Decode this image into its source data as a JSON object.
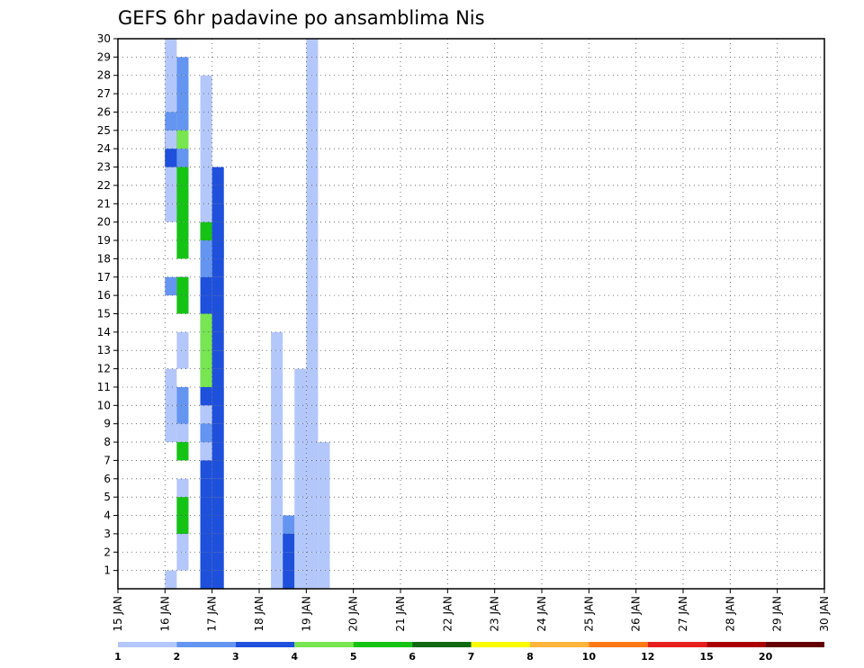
{
  "chart_data": {
    "type": "heatmap",
    "title": "GEFS 6hr padavine po ansamblima Nis",
    "xlabel": "",
    "ylabel": "",
    "x_tick_labels": [
      "15 JAN",
      "16 JAN",
      "17 JAN",
      "18 JAN",
      "19 JAN",
      "20 JAN",
      "21 JAN",
      "22 JAN",
      "23 JAN",
      "24 JAN",
      "25 JAN",
      "26 JAN",
      "27 JAN",
      "28 JAN",
      "29 JAN",
      "30 JAN"
    ],
    "y_tick_labels": [
      "1",
      "2",
      "3",
      "4",
      "5",
      "6",
      "7",
      "8",
      "9",
      "10",
      "11",
      "12",
      "13",
      "14",
      "15",
      "16",
      "17",
      "18",
      "19",
      "20",
      "21",
      "22",
      "23",
      "24",
      "25",
      "26",
      "27",
      "28",
      "29",
      "30"
    ],
    "xlim": [
      0,
      60
    ],
    "ylim": [
      0,
      30
    ],
    "grid": true,
    "x_unit": "6-hour steps from 15 JAN 00Z",
    "legend": {
      "position": "bottom",
      "labels": [
        "1",
        "2",
        "3",
        "4",
        "5",
        "6",
        "7",
        "8",
        "10",
        "12",
        "15",
        "20"
      ],
      "colors": [
        "#b4c7fa",
        "#6495f0",
        "#1e50dc",
        "#78e650",
        "#14c314",
        "#0f690f",
        "#fafa00",
        "#ffb43c",
        "#ff7814",
        "#e61e1e",
        "#aa0000",
        "#640000"
      ]
    },
    "cells": [
      [
        4,
        1,
        0
      ],
      [
        4,
        1,
        8
      ],
      [
        4,
        1,
        9
      ],
      [
        4,
        1,
        10
      ],
      [
        4,
        1,
        11
      ],
      [
        4,
        1,
        20
      ],
      [
        4,
        1,
        21
      ],
      [
        4,
        1,
        22
      ],
      [
        4,
        1,
        26
      ],
      [
        4,
        1,
        27
      ],
      [
        4,
        1,
        28
      ],
      [
        4,
        1,
        29
      ],
      [
        5,
        1,
        1
      ],
      [
        5,
        1,
        2
      ],
      [
        5,
        1,
        3
      ],
      [
        5,
        1,
        4
      ],
      [
        5,
        1,
        5
      ],
      [
        5,
        1,
        7
      ],
      [
        5,
        1,
        8
      ],
      [
        5,
        1,
        9
      ],
      [
        5,
        1,
        12
      ],
      [
        5,
        1,
        13
      ],
      [
        5,
        2,
        9
      ],
      [
        5,
        2,
        10
      ],
      [
        5,
        2,
        16
      ],
      [
        5,
        2,
        23
      ],
      [
        5,
        2,
        24
      ],
      [
        5,
        2,
        25
      ],
      [
        5,
        3,
        3
      ],
      [
        5,
        3,
        16
      ],
      [
        5,
        4,
        21
      ],
      [
        5,
        4,
        24
      ],
      [
        5,
        5,
        3
      ],
      [
        5,
        5,
        4
      ],
      [
        5,
        5,
        7
      ],
      [
        5,
        5,
        15
      ],
      [
        5,
        5,
        16
      ],
      [
        5,
        5,
        18
      ],
      [
        5,
        5,
        19
      ],
      [
        5,
        5,
        20
      ],
      [
        5,
        5,
        21
      ],
      [
        5,
        5,
        22
      ],
      [
        4,
        2,
        25
      ],
      [
        4,
        2,
        24
      ],
      [
        4,
        2,
        23
      ],
      [
        4,
        2,
        16
      ],
      [
        4,
        3,
        24
      ],
      [
        4,
        3,
        23
      ],
      [
        4,
        1,
        24
      ],
      [
        5,
        2,
        26
      ],
      [
        5,
        2,
        27
      ],
      [
        5,
        2,
        28
      ],
      [
        7,
        2,
        19
      ],
      [
        7,
        2,
        18
      ],
      [
        7,
        2,
        17
      ],
      [
        7,
        2,
        15
      ],
      [
        7,
        2,
        14
      ],
      [
        7,
        2,
        13
      ],
      [
        7,
        2,
        12
      ],
      [
        7,
        2,
        11
      ],
      [
        7,
        2,
        10
      ],
      [
        7,
        2,
        4
      ],
      [
        7,
        2,
        3
      ],
      [
        7,
        2,
        2
      ],
      [
        7,
        2,
        1
      ],
      [
        7,
        2,
        0
      ],
      [
        7,
        3,
        0
      ],
      [
        7,
        3,
        1
      ],
      [
        7,
        3,
        2
      ],
      [
        7,
        3,
        3
      ],
      [
        7,
        3,
        4
      ],
      [
        7,
        3,
        5
      ],
      [
        7,
        3,
        6
      ],
      [
        7,
        3,
        7
      ],
      [
        7,
        3,
        8
      ],
      [
        7,
        3,
        9
      ],
      [
        7,
        3,
        10
      ],
      [
        7,
        3,
        11
      ],
      [
        7,
        3,
        12
      ],
      [
        7,
        3,
        13
      ],
      [
        7,
        3,
        14
      ],
      [
        7,
        3,
        15
      ],
      [
        7,
        3,
        16
      ],
      [
        7,
        4,
        11
      ],
      [
        7,
        4,
        12
      ],
      [
        7,
        4,
        13
      ],
      [
        7,
        4,
        14
      ],
      [
        7,
        1,
        22
      ],
      [
        7,
        1,
        23
      ],
      [
        7,
        1,
        24
      ],
      [
        7,
        1,
        25
      ],
      [
        7,
        1,
        26
      ],
      [
        7,
        1,
        27
      ],
      [
        7,
        5,
        19
      ],
      [
        7,
        1,
        21
      ],
      [
        7,
        1,
        20
      ],
      [
        7,
        1,
        9
      ],
      [
        7,
        1,
        7
      ],
      [
        7,
        2,
        8
      ],
      [
        8,
        1,
        9
      ],
      [
        8,
        1,
        10
      ],
      [
        8,
        2,
        20
      ],
      [
        8,
        2,
        19
      ],
      [
        8,
        2,
        18
      ],
      [
        8,
        3,
        22
      ],
      [
        8,
        3,
        21
      ],
      [
        8,
        3,
        20
      ],
      [
        8,
        3,
        19
      ],
      [
        8,
        3,
        18
      ],
      [
        8,
        3,
        17
      ],
      [
        8,
        3,
        16
      ],
      [
        8,
        3,
        15
      ],
      [
        8,
        3,
        14
      ],
      [
        8,
        3,
        13
      ],
      [
        8,
        3,
        12
      ],
      [
        8,
        3,
        11
      ],
      [
        8,
        3,
        10
      ],
      [
        8,
        3,
        9
      ],
      [
        8,
        3,
        8
      ],
      [
        8,
        3,
        7
      ],
      [
        8,
        3,
        6
      ],
      [
        8,
        3,
        5
      ],
      [
        8,
        3,
        4
      ],
      [
        8,
        3,
        3
      ],
      [
        8,
        3,
        2
      ],
      [
        8,
        3,
        1
      ],
      [
        8,
        3,
        0
      ],
      [
        13,
        1,
        13
      ],
      [
        13,
        1,
        12
      ],
      [
        13,
        1,
        11
      ],
      [
        13,
        1,
        10
      ],
      [
        13,
        1,
        9
      ],
      [
        13,
        1,
        8
      ],
      [
        13,
        1,
        7
      ],
      [
        13,
        1,
        6
      ],
      [
        13,
        1,
        5
      ],
      [
        13,
        1,
        4
      ],
      [
        13,
        1,
        3
      ],
      [
        13,
        1,
        2
      ],
      [
        13,
        1,
        1
      ],
      [
        13,
        1,
        0
      ],
      [
        14,
        1,
        3
      ],
      [
        14,
        2,
        3
      ],
      [
        14,
        3,
        2
      ],
      [
        14,
        3,
        1
      ],
      [
        14,
        3,
        0
      ],
      [
        15,
        1,
        11
      ],
      [
        15,
        1,
        10
      ],
      [
        15,
        1,
        9
      ],
      [
        15,
        1,
        8
      ],
      [
        15,
        1,
        7
      ],
      [
        15,
        1,
        6
      ],
      [
        15,
        1,
        5
      ],
      [
        15,
        1,
        4
      ],
      [
        15,
        1,
        3
      ],
      [
        15,
        1,
        2
      ],
      [
        15,
        1,
        1
      ],
      [
        15,
        1,
        0
      ],
      [
        16,
        1,
        29
      ],
      [
        16,
        1,
        28
      ],
      [
        16,
        1,
        27
      ],
      [
        16,
        1,
        26
      ],
      [
        16,
        1,
        25
      ],
      [
        16,
        1,
        24
      ],
      [
        16,
        1,
        23
      ],
      [
        16,
        1,
        22
      ],
      [
        16,
        1,
        21
      ],
      [
        16,
        1,
        20
      ],
      [
        16,
        1,
        19
      ],
      [
        16,
        1,
        18
      ],
      [
        16,
        1,
        17
      ],
      [
        16,
        1,
        16
      ],
      [
        16,
        1,
        15
      ],
      [
        16,
        1,
        14
      ],
      [
        16,
        1,
        13
      ],
      [
        16,
        1,
        12
      ],
      [
        16,
        1,
        11
      ],
      [
        16,
        1,
        10
      ],
      [
        16,
        1,
        9
      ],
      [
        16,
        1,
        8
      ],
      [
        16,
        1,
        7
      ],
      [
        16,
        1,
        6
      ],
      [
        16,
        1,
        5
      ],
      [
        16,
        1,
        4
      ],
      [
        16,
        1,
        3
      ],
      [
        16,
        1,
        2
      ],
      [
        16,
        1,
        1
      ],
      [
        16,
        1,
        0
      ],
      [
        17,
        1,
        0
      ],
      [
        17,
        1,
        1
      ],
      [
        17,
        1,
        2
      ],
      [
        17,
        1,
        3
      ],
      [
        17,
        1,
        4
      ],
      [
        17,
        1,
        5
      ],
      [
        17,
        1,
        6
      ],
      [
        17,
        1,
        7
      ]
    ]
  }
}
